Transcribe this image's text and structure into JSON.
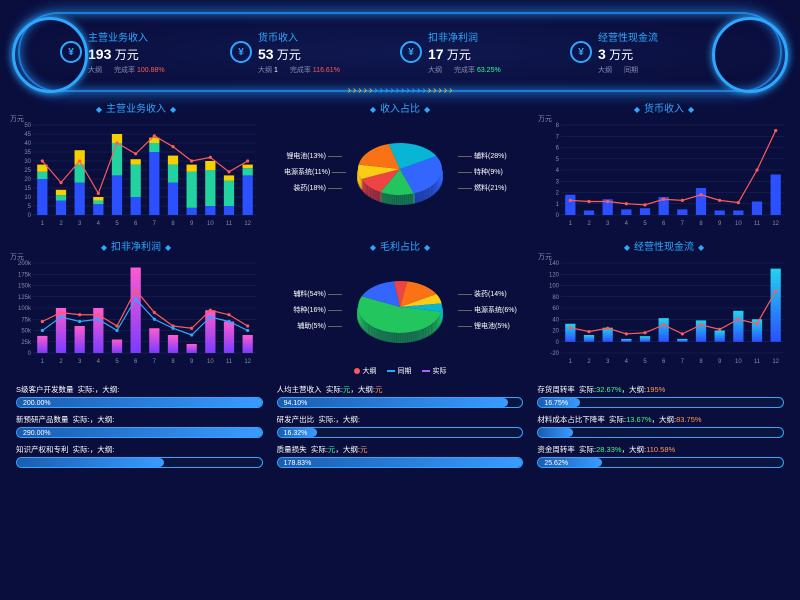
{
  "colors": {
    "bg": "#0a0e3d",
    "glow": "#1e7cd6",
    "cyan": "#2ea8ff",
    "red": "#ff5a5a",
    "green": "#2fff9a",
    "orange": "#ff9a5a"
  },
  "kpis": [
    {
      "title": "主营业务收入",
      "value": "193",
      "unit": "万元",
      "sub1": "大纲",
      "rate": "100.88%",
      "rate_label": "完成率",
      "rate_cls": "rate-up"
    },
    {
      "title": "货币收入",
      "value": "53",
      "unit": "万元",
      "sub1": "大纲",
      "sub1v": "1",
      "rate": "116.61%",
      "rate_label": "完成率",
      "rate_cls": "rate-up"
    },
    {
      "title": "扣非净利润",
      "value": "17",
      "unit": "万元",
      "sub1": "大纲",
      "rate": "63.25%",
      "rate_label": "完成率",
      "rate_cls": "rate-dn"
    },
    {
      "title": "经营性现金流",
      "value": "3",
      "unit": "万元",
      "sub1": "大纲",
      "rate": "",
      "rate_label": "同期",
      "rate_cls": ""
    }
  ],
  "chevrons": [
    "y",
    "y",
    "y",
    "y",
    "y",
    "b",
    "b",
    "b",
    "b",
    "b",
    "b",
    "b",
    "b",
    "b",
    "b",
    "y",
    "y",
    "y",
    "y",
    "y"
  ],
  "legend": [
    {
      "label": "大纲",
      "type": "dot",
      "color": "#ff5a5a"
    },
    {
      "label": "同期",
      "type": "line",
      "color": "#2ea8ff"
    },
    {
      "label": "实际",
      "type": "line",
      "color": "#b060ff"
    }
  ],
  "charts": {
    "tl": {
      "title": "主营业务收入",
      "unit": "万元",
      "ymax": 50,
      "ystep": 5,
      "x": [
        1,
        2,
        3,
        4,
        5,
        6,
        7,
        8,
        9,
        10,
        11,
        12
      ],
      "stack": [
        {
          "color": "#2a50ff",
          "v": [
            20,
            8,
            18,
            6,
            22,
            10,
            35,
            18,
            4,
            5,
            5,
            22
          ]
        },
        {
          "color": "#22d3a0",
          "v": [
            4,
            3,
            10,
            2,
            18,
            18,
            5,
            10,
            20,
            20,
            14,
            4
          ]
        },
        {
          "color": "#f5d000",
          "v": [
            4,
            3,
            8,
            2,
            5,
            3,
            3,
            5,
            4,
            5,
            3,
            2
          ]
        }
      ],
      "line": {
        "color": "#ff5a5a",
        "v": [
          30,
          18,
          30,
          12,
          40,
          34,
          44,
          38,
          30,
          32,
          24,
          30
        ]
      }
    },
    "tr": {
      "title": "货币收入",
      "unit": "万元",
      "ymax": 8,
      "ystep": 1,
      "x": [
        1,
        2,
        3,
        4,
        5,
        6,
        7,
        8,
        9,
        10,
        11,
        12
      ],
      "bars": {
        "color": "#2a50ff",
        "v": [
          1.8,
          0.4,
          1.4,
          0.5,
          0.6,
          1.6,
          0.5,
          2.4,
          0.4,
          0.4,
          1.2,
          3.6
        ]
      },
      "line": {
        "color": "#ff5a5a",
        "v": [
          1.3,
          1.2,
          1.2,
          1.0,
          0.9,
          1.4,
          1.3,
          1.8,
          1.3,
          1.1,
          4.0,
          7.5
        ]
      }
    },
    "bl": {
      "title": "扣非净利润",
      "unit": "万元",
      "ymax": 200000,
      "ystep": 25000,
      "x": [
        1,
        2,
        3,
        4,
        5,
        6,
        7,
        8,
        9,
        10,
        11,
        12
      ],
      "bars": {
        "grad": [
          "#7a3cff",
          "#ff5ad0"
        ],
        "v": [
          38000,
          100000,
          60000,
          100000,
          30000,
          190000,
          55000,
          40000,
          20000,
          95000,
          70000,
          40000
        ]
      },
      "line": {
        "color": "#ff5a5a",
        "v": [
          70000,
          90000,
          85000,
          85000,
          60000,
          140000,
          90000,
          60000,
          55000,
          95000,
          85000,
          60000
        ]
      },
      "line2": {
        "color": "#2ea8ff",
        "v": [
          50000,
          80000,
          70000,
          75000,
          50000,
          120000,
          75000,
          55000,
          40000,
          80000,
          70000,
          50000
        ]
      }
    },
    "br": {
      "title": "经营性现金流",
      "unit": "万元",
      "ymax": 140,
      "ystep": 20,
      "ymin": -20,
      "x": [
        1,
        2,
        3,
        4,
        5,
        6,
        7,
        8,
        9,
        10,
        11,
        12
      ],
      "bars": {
        "grad": [
          "#2a50ff",
          "#22d3ee"
        ],
        "v": [
          32,
          12,
          25,
          5,
          10,
          42,
          5,
          38,
          20,
          55,
          40,
          130
        ]
      },
      "line": {
        "color": "#ff5a5a",
        "v": [
          25,
          18,
          24,
          14,
          16,
          30,
          14,
          30,
          22,
          40,
          32,
          90
        ]
      }
    }
  },
  "pies": {
    "top": {
      "title": "收入占比",
      "rot": -30,
      "slices": [
        {
          "label": "辅料(28%)",
          "v": 28,
          "color": "#3366ff",
          "side": "r"
        },
        {
          "label": "锂电池(13%)",
          "v": 13,
          "color": "#22c55e",
          "side": "l"
        },
        {
          "label": "电源系统(11%)",
          "v": 11,
          "color": "#ef4444",
          "side": "l"
        },
        {
          "label": "特种(9%)",
          "v": 9,
          "color": "#facc15",
          "side": "r"
        },
        {
          "label": "装药(18%)",
          "v": 18,
          "color": "#f97316",
          "side": "l"
        },
        {
          "label": "燃料(21%)",
          "v": 21,
          "color": "#06b6d4",
          "side": "r"
        }
      ]
    },
    "bot": {
      "title": "毛利占比",
      "rot": 10,
      "slices": [
        {
          "label": "辅料(54%)",
          "v": 54,
          "color": "#22c55e",
          "side": "l"
        },
        {
          "label": "特种(16%)",
          "v": 16,
          "color": "#3366ff",
          "side": "l"
        },
        {
          "label": "辅助(5%)",
          "v": 5,
          "color": "#ef4444",
          "side": "l"
        },
        {
          "label": "装药(14%)",
          "v": 14,
          "color": "#f97316",
          "side": "r"
        },
        {
          "label": "电源系统(6%)",
          "v": 6,
          "color": "#facc15",
          "side": "r"
        },
        {
          "label": "锂电池(5%)",
          "v": 5,
          "color": "#06b6d4",
          "side": "r"
        }
      ]
    }
  },
  "rows": [
    {
      "label": "S级客户开发数量",
      "actual": "",
      "target": "",
      "pct": "200.00%",
      "fill": 100
    },
    {
      "label": "人均主营收入",
      "actual": "元",
      "target": "元",
      "pct": "94.10%",
      "fill": 94
    },
    {
      "label": "存货周转率",
      "actual": "32.67%",
      "target": "195%",
      "pct": "16.75%",
      "fill": 17
    },
    {
      "label": "新预研产品数量",
      "actual": "",
      "target": "",
      "pct": "290.00%",
      "fill": 100
    },
    {
      "label": "研发产出比",
      "actual": "",
      "target": "",
      "pct": "16.32%",
      "fill": 16
    },
    {
      "label": "材料成本占比下降率",
      "actual": "13.67%",
      "target": "83.75%",
      "pct": "",
      "fill": 14
    },
    {
      "label": "知识产权和专利",
      "actual": "",
      "target": "",
      "pct": "",
      "fill": 60
    },
    {
      "label": "质量损失",
      "actual": "元",
      "target": "元",
      "pct": "178.83%",
      "fill": 100
    },
    {
      "label": "资金周转率",
      "actual": "28.33%",
      "target": "110.58%",
      "pct": "25.62%",
      "fill": 26
    }
  ]
}
